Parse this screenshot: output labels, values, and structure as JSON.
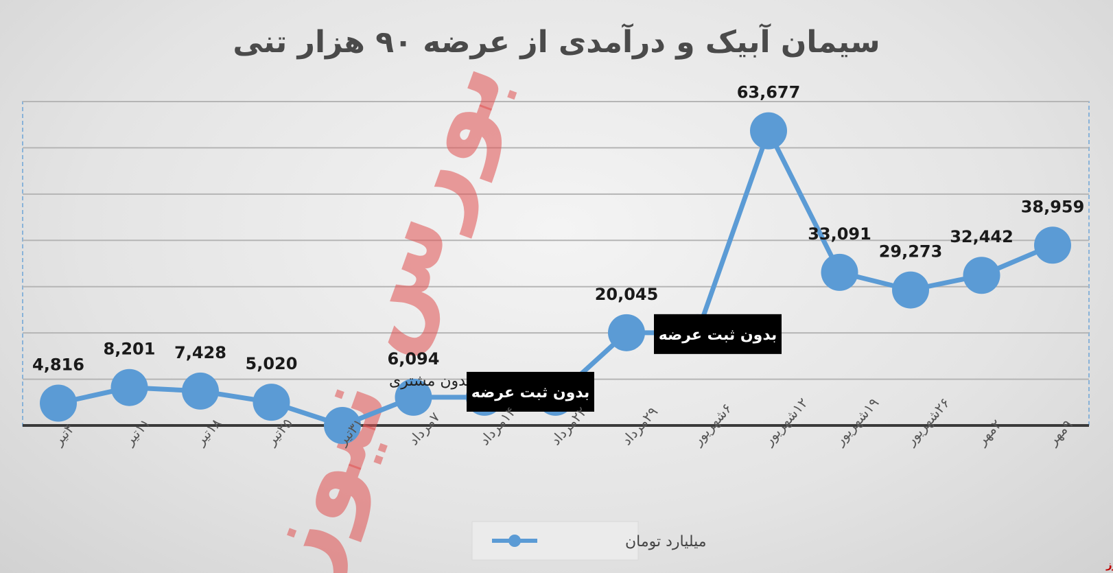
{
  "chart_data": {
    "type": "line",
    "title": "سیمان آبیک و درآمدی از عرضه ۹۰ هزار تنی",
    "categories": [
      "۴تیر",
      "۱۱تیر",
      "۱۸تیر",
      "۲۵تیر",
      "۳۱تیر",
      "۷مرداد",
      "۱۴مرداد",
      "۲۲مرداد",
      "۲۹مرداد",
      "۶شهریور",
      "۱۲شهریور",
      "۱۹شهریور",
      "۲۶شهریور",
      "۲مهر",
      "۹مهر"
    ],
    "series": [
      {
        "name": "میلیارد تومان",
        "color": "#5b9bd5",
        "values": [
          4816,
          8201,
          7428,
          5020,
          0,
          6094,
          6094,
          6094,
          20045,
          20045,
          63677,
          33091,
          29273,
          32442,
          38959
        ],
        "labels": [
          "4,816",
          "8,201",
          "7,428",
          "5,020",
          "",
          "6,094",
          "",
          "",
          "20,045",
          "",
          "63,677",
          "33,091",
          "29,273",
          "32,442",
          "38,959"
        ]
      }
    ],
    "annotations": [
      {
        "text": "بدون مشتری",
        "style": "plain",
        "category": "۳۱تیر"
      },
      {
        "text": "بدون ثبت عرضه",
        "style": "box",
        "category": "۲۲مرداد"
      },
      {
        "text": "بدون ثبت عرضه",
        "style": "box",
        "category": "۶شهریور"
      }
    ],
    "ylim": [
      0,
      70000
    ],
    "grid": true,
    "legend": "bottom-center"
  },
  "watermark": {
    "text": "بورس نیوز",
    "color": "#e05050"
  },
  "brand": "بورس نیوز"
}
